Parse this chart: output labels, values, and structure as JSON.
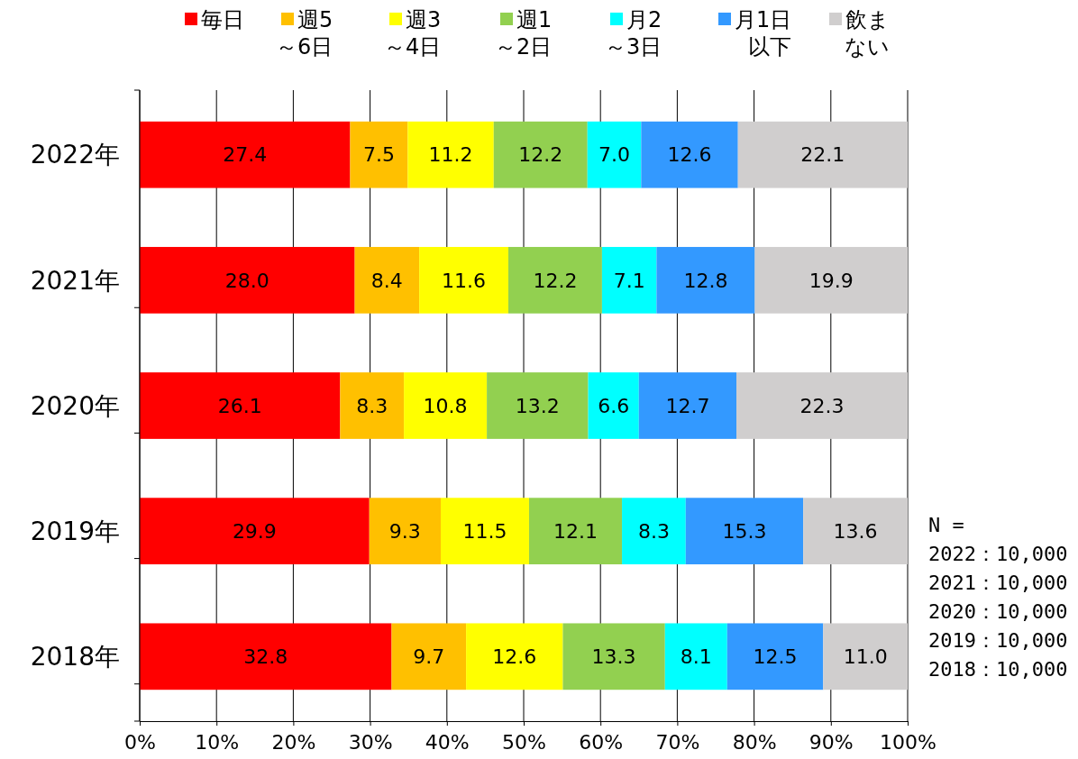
{
  "chart_data": {
    "type": "bar",
    "orientation": "horizontal",
    "stacked": true,
    "categories": [
      "2022年",
      "2021年",
      "2020年",
      "2019年",
      "2018年"
    ],
    "xlim": [
      0,
      100
    ],
    "xticks": [
      {
        "value": 0,
        "label": "0%"
      },
      {
        "value": 10,
        "label": "10%"
      },
      {
        "value": 20,
        "label": "20%"
      },
      {
        "value": 30,
        "label": "30%"
      },
      {
        "value": 40,
        "label": "40%"
      },
      {
        "value": 50,
        "label": "50%"
      },
      {
        "value": 60,
        "label": "60%"
      },
      {
        "value": 70,
        "label": "70%"
      },
      {
        "value": 80,
        "label": "80%"
      },
      {
        "value": 90,
        "label": "90%"
      },
      {
        "value": 100,
        "label": "100%"
      }
    ],
    "grid": "x",
    "legend": "top",
    "series": [
      {
        "name": "毎日",
        "color": "#ff0000",
        "values": [
          27.4,
          28.0,
          26.1,
          29.9,
          32.8
        ],
        "value_labels": [
          "27.4",
          "28.0",
          "26.1",
          "29.9",
          "32.8"
        ]
      },
      {
        "name": "週5～6日",
        "color": "#ffc000",
        "values": [
          7.5,
          8.4,
          8.3,
          9.3,
          9.7
        ],
        "value_labels": [
          "7.5",
          "8.4",
          "8.3",
          "9.3",
          "9.7"
        ]
      },
      {
        "name": "週3～4日",
        "color": "#ffff00",
        "values": [
          11.2,
          11.6,
          10.8,
          11.5,
          12.6
        ],
        "value_labels": [
          "11.2",
          "11.6",
          "10.8",
          "11.5",
          "12.6"
        ]
      },
      {
        "name": "週1～2日",
        "color": "#92d050",
        "values": [
          12.2,
          12.2,
          13.2,
          12.1,
          13.3
        ],
        "value_labels": [
          "12.2",
          "12.2",
          "13.2",
          "12.1",
          "13.3"
        ]
      },
      {
        "name": "月2～3日",
        "color": "#00ffff",
        "values": [
          7.0,
          7.1,
          6.6,
          8.3,
          8.1
        ],
        "value_labels": [
          "7.0",
          "7.1",
          "6.6",
          "8.3",
          "8.1"
        ]
      },
      {
        "name": "月1日以下",
        "color": "#3399ff",
        "values": [
          12.6,
          12.8,
          12.7,
          15.3,
          12.5
        ],
        "value_labels": [
          "12.6",
          "12.8",
          "12.7",
          "15.3",
          "12.5"
        ]
      },
      {
        "name": "飲まない",
        "color": "#d0cece",
        "values": [
          22.1,
          19.9,
          22.3,
          13.6,
          11.0
        ],
        "value_labels": [
          "22.1",
          "19.9",
          "22.3",
          "13.6",
          "11.0"
        ]
      }
    ],
    "annotations": [
      "N =",
      "2022：10,000",
      "2021：10,000",
      "2020：10,000",
      "2019：10,000",
      "2018：10,000"
    ]
  }
}
